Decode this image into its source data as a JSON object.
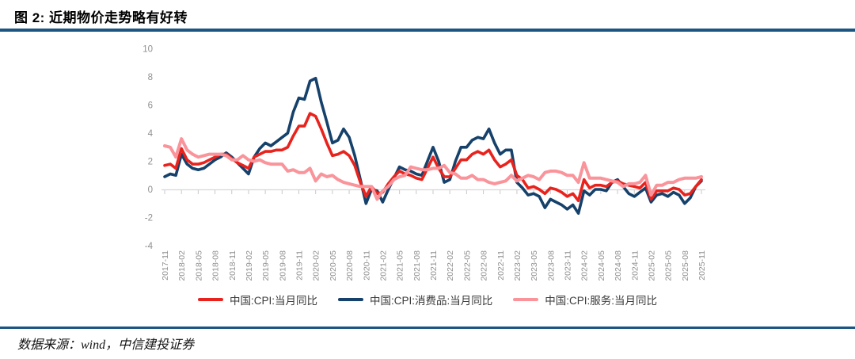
{
  "header": {
    "title": "图 2: 近期物价走势略有好转"
  },
  "footer": {
    "source": "数据来源：wind，中信建投证券"
  },
  "colors": {
    "rule": "#1b5682",
    "axis_line": "#d6d6d6",
    "tick": "#c9c9c9",
    "axis_label": "#8f8f8f"
  },
  "chart_data": {
    "type": "line",
    "title": "",
    "xlabel": "",
    "ylabel": "",
    "ylim": [
      -4,
      10
    ],
    "y_ticks": [
      10,
      8,
      6,
      4,
      2,
      0,
      -2,
      -4
    ],
    "grid": false,
    "legend_position": "bottom",
    "start_month": "2017-11",
    "end_month": "2025-11",
    "x_tick_labels": [
      "2017-11",
      "2018-02",
      "2018-05",
      "2018-08",
      "2018-11",
      "2019-02",
      "2019-05",
      "2019-08",
      "2019-11",
      "2020-02",
      "2020-05",
      "2020-08",
      "2020-11",
      "2021-02",
      "2021-05",
      "2021-08",
      "2021-11",
      "2022-02",
      "2022-05",
      "2022-08",
      "2022-11",
      "2023-02",
      "2023-05",
      "2023-08",
      "2023-11",
      "2024-02",
      "2024-05",
      "2024-08",
      "2024-11",
      "2025-02",
      "2025-05",
      "2025-08",
      "2025-11"
    ],
    "series": [
      {
        "name": "中国:CPI:当月同比",
        "color": "#e8231d",
        "width": 3.6,
        "values": [
          1.7,
          1.8,
          1.5,
          2.9,
          2.1,
          1.8,
          1.8,
          1.9,
          2.1,
          2.3,
          2.5,
          2.5,
          2.2,
          1.9,
          1.7,
          1.5,
          2.3,
          2.5,
          2.7,
          2.7,
          2.8,
          2.8,
          3.0,
          3.8,
          4.5,
          4.5,
          5.4,
          5.2,
          4.3,
          3.3,
          2.4,
          2.5,
          2.7,
          2.4,
          1.7,
          0.5,
          -0.5,
          0.2,
          -0.3,
          -0.2,
          0.4,
          0.9,
          1.3,
          1.1,
          1.0,
          0.8,
          0.7,
          1.5,
          2.3,
          1.5,
          0.9,
          0.9,
          1.5,
          2.1,
          2.1,
          2.5,
          2.7,
          2.5,
          2.8,
          2.1,
          1.6,
          1.8,
          2.1,
          1.0,
          0.7,
          0.1,
          0.2,
          0.0,
          -0.3,
          0.1,
          0.0,
          -0.2,
          -0.5,
          -0.3,
          -0.8,
          0.7,
          0.1,
          0.3,
          0.3,
          0.2,
          0.5,
          0.6,
          0.4,
          0.3,
          0.2,
          0.1,
          0.5,
          -0.7,
          -0.1,
          -0.1,
          -0.1,
          0.1,
          0.0,
          -0.4,
          -0.3,
          0.2,
          0.7
        ]
      },
      {
        "name": "中国:CPI:消费品:当月同比",
        "color": "#15416b",
        "width": 3.6,
        "values": [
          0.9,
          1.1,
          1.0,
          2.5,
          1.8,
          1.5,
          1.4,
          1.5,
          1.8,
          2.1,
          2.3,
          2.6,
          2.3,
          1.9,
          1.5,
          1.1,
          2.3,
          2.9,
          3.3,
          3.1,
          3.4,
          3.7,
          4.0,
          5.5,
          6.5,
          6.4,
          7.7,
          7.9,
          6.2,
          4.8,
          3.3,
          3.5,
          4.3,
          3.7,
          2.4,
          0.7,
          -1.0,
          0.0,
          -0.1,
          -0.9,
          0.0,
          0.8,
          1.6,
          1.4,
          1.3,
          1.1,
          1.0,
          2.0,
          3.0,
          2.0,
          0.5,
          0.7,
          2.0,
          3.0,
          3.0,
          3.5,
          3.7,
          3.6,
          4.3,
          3.3,
          2.5,
          2.8,
          2.8,
          0.5,
          0.1,
          -0.4,
          -0.3,
          -0.5,
          -1.3,
          -0.7,
          -0.9,
          -1.1,
          -1.4,
          -1.1,
          -1.7,
          -0.1,
          -0.4,
          0.0,
          0.0,
          -0.1,
          0.5,
          0.7,
          0.2,
          -0.3,
          -0.5,
          -0.2,
          0.1,
          -0.9,
          -0.4,
          -0.3,
          -0.5,
          -0.2,
          -0.4,
          -1.0,
          -0.6,
          0.2,
          0.6
        ]
      },
      {
        "name": "中国:CPI:服务:当月同比",
        "color": "#fa949b",
        "width": 4,
        "values": [
          3.1,
          3.0,
          2.3,
          3.6,
          2.8,
          2.5,
          2.3,
          2.4,
          2.5,
          2.5,
          2.5,
          2.4,
          2.1,
          2.1,
          2.4,
          2.1,
          2.0,
          2.1,
          1.9,
          1.8,
          1.8,
          1.8,
          1.3,
          1.4,
          1.2,
          1.2,
          1.5,
          0.6,
          1.1,
          0.9,
          1.0,
          0.7,
          0.5,
          0.4,
          0.3,
          0.2,
          0.2,
          0.2,
          -0.7,
          -0.1,
          0.2,
          0.7,
          0.9,
          1.0,
          1.6,
          1.5,
          1.4,
          1.4,
          1.5,
          1.5,
          1.7,
          1.2,
          1.1,
          0.8,
          0.8,
          1.0,
          0.7,
          0.7,
          0.5,
          0.4,
          0.5,
          0.6,
          1.0,
          0.6,
          0.8,
          1.0,
          0.9,
          0.7,
          1.2,
          1.3,
          1.3,
          1.2,
          1.0,
          1.0,
          0.5,
          1.9,
          0.8,
          0.8,
          0.8,
          0.7,
          0.6,
          0.5,
          0.2,
          0.4,
          0.4,
          0.5,
          1.0,
          -0.4,
          0.3,
          0.3,
          0.5,
          0.5,
          0.7,
          0.8,
          0.8,
          0.8,
          0.9
        ]
      }
    ]
  }
}
